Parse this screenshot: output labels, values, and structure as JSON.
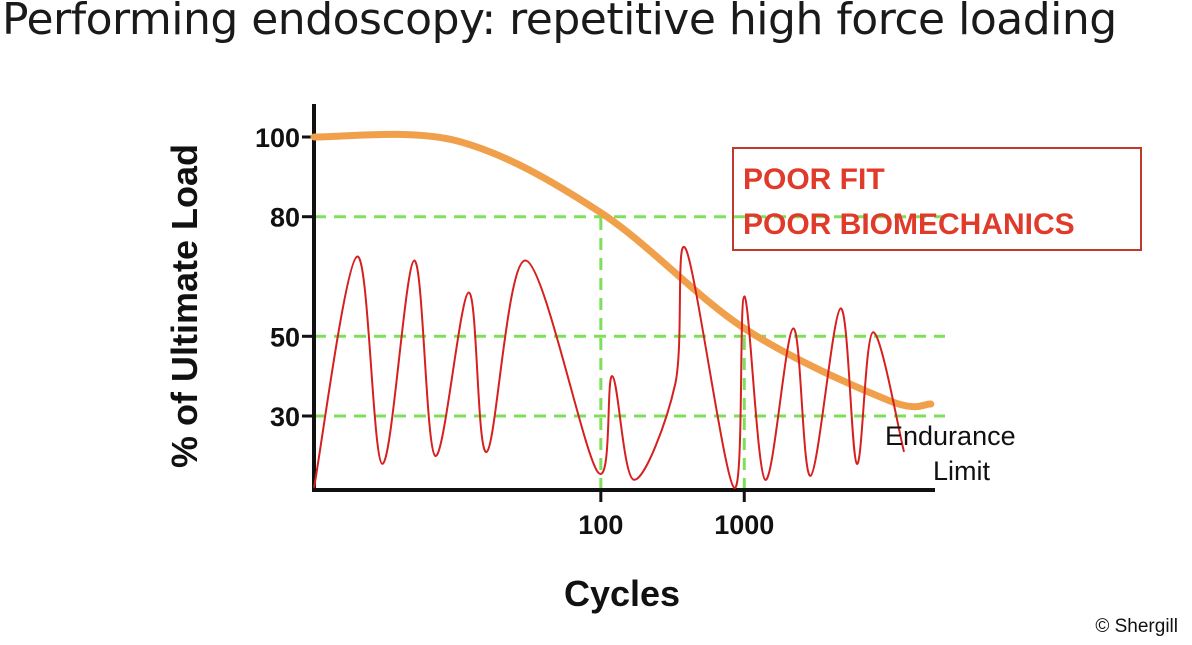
{
  "slide": {
    "title": "Performing endoscopy: repetitive high force loading",
    "copyright": "© Shergill"
  },
  "callout": {
    "lines": [
      "POOR FIT",
      "POOR BIOMECHANICS"
    ],
    "color": "#e03a2a"
  },
  "colors": {
    "sn_curve": "#f0a04b",
    "loading": "#d62020",
    "reference": "#7ee05a",
    "axis": "#111111"
  },
  "chart_data": {
    "type": "line",
    "ylabel": "% of Ultimate Load",
    "xlabel": "Cycles",
    "x_scale": "log",
    "y_ticks": [
      100,
      80,
      50,
      30
    ],
    "x_ticks": [
      100,
      1000
    ],
    "annotations": [
      "Endurance",
      "Limit"
    ],
    "reference_lines": {
      "horizontal": [
        80,
        50,
        30
      ],
      "vertical": [
        100,
        1000
      ]
    },
    "series": [
      {
        "key": "sn_curve",
        "points": [
          [
            1,
            100
          ],
          [
            10,
            99
          ],
          [
            100,
            81
          ],
          [
            1000,
            52
          ],
          [
            10000,
            34
          ],
          [
            20000,
            33
          ]
        ]
      },
      {
        "key": "loading",
        "points": [
          [
            1,
            12
          ],
          [
            2,
            70
          ],
          [
            3,
            18
          ],
          [
            5,
            69
          ],
          [
            7,
            20
          ],
          [
            12,
            61
          ],
          [
            16,
            21
          ],
          [
            30,
            69
          ],
          [
            95,
            16
          ],
          [
            120,
            40
          ],
          [
            170,
            14
          ],
          [
            330,
            38
          ],
          [
            390,
            72
          ],
          [
            850,
            12
          ],
          [
            1000,
            60
          ],
          [
            1400,
            14
          ],
          [
            2200,
            52
          ],
          [
            2900,
            15
          ],
          [
            4700,
            57
          ],
          [
            6100,
            18
          ],
          [
            7900,
            51
          ],
          [
            13000,
            21
          ]
        ]
      }
    ]
  }
}
